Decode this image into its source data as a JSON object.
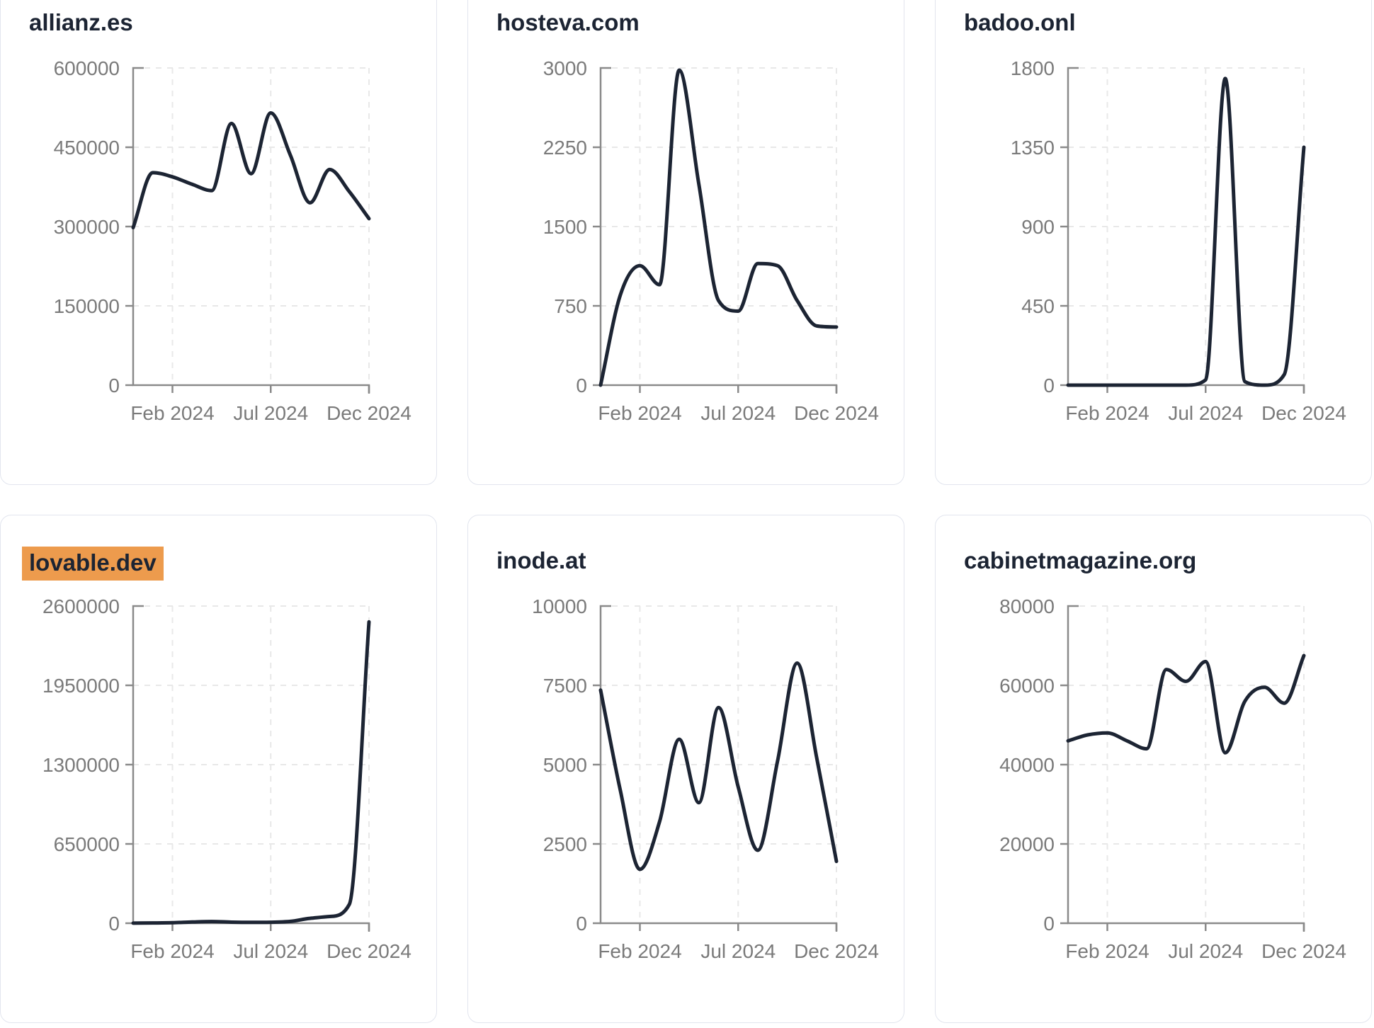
{
  "colors": {
    "line": "#1C2433",
    "title": "#1C2433",
    "highlight": "#ED9B4D",
    "tick_label": "#7A7A7A",
    "axis": "#8A8A8A",
    "grid": "#E8E8E8",
    "card_border": "#E2E5EE",
    "background": "#FFFFFF"
  },
  "x_axis": {
    "months": [
      "Dec 2023",
      "Jan 2024",
      "Feb 2024",
      "Mar 2024",
      "Apr 2024",
      "May 2024",
      "Jun 2024",
      "Jul 2024",
      "Aug 2024",
      "Sep 2024",
      "Oct 2024",
      "Nov 2024",
      "Dec 2024"
    ],
    "tick_indices": [
      2,
      7,
      12
    ],
    "tick_labels": [
      "Feb 2024",
      "Jul 2024",
      "Dec 2024"
    ]
  },
  "chart_data": [
    {
      "type": "line",
      "title": "allianz.es",
      "highlighted": false,
      "x": [
        "Dec 2023",
        "Jan 2024",
        "Feb 2024",
        "Mar 2024",
        "Apr 2024",
        "May 2024",
        "Jun 2024",
        "Jul 2024",
        "Aug 2024",
        "Sep 2024",
        "Oct 2024",
        "Nov 2024",
        "Dec 2024"
      ],
      "values": [
        298000,
        402000,
        394000,
        380000,
        368000,
        495000,
        400000,
        515000,
        435000,
        345000,
        408000,
        366000,
        315000
      ],
      "yticks": [
        0,
        150000,
        300000,
        450000,
        600000
      ],
      "ylim": [
        0,
        600000
      ],
      "xticks": [
        "Feb 2024",
        "Jul 2024",
        "Dec 2024"
      ],
      "grid": true,
      "legend": "none"
    },
    {
      "type": "line",
      "title": "hosteva.com",
      "highlighted": false,
      "x": [
        "Dec 2023",
        "Jan 2024",
        "Feb 2024",
        "Mar 2024",
        "Apr 2024",
        "May 2024",
        "Jun 2024",
        "Jul 2024",
        "Aug 2024",
        "Sep 2024",
        "Oct 2024",
        "Nov 2024",
        "Dec 2024"
      ],
      "values": [
        0,
        850,
        1130,
        950,
        2980,
        1900,
        800,
        700,
        1150,
        1130,
        800,
        560,
        550
      ],
      "yticks": [
        0,
        750,
        1500,
        2250,
        3000
      ],
      "ylim": [
        0,
        3000
      ],
      "xticks": [
        "Feb 2024",
        "Jul 2024",
        "Dec 2024"
      ],
      "grid": true,
      "legend": "none"
    },
    {
      "type": "line",
      "title": "badoo.onl",
      "highlighted": false,
      "x": [
        "Dec 2023",
        "Jan 2024",
        "Feb 2024",
        "Mar 2024",
        "Apr 2024",
        "May 2024",
        "Jun 2024",
        "Jul 2024",
        "Aug 2024",
        "Sep 2024",
        "Oct 2024",
        "Nov 2024",
        "Dec 2024"
      ],
      "values": [
        0,
        0,
        0,
        0,
        0,
        0,
        0,
        30,
        1740,
        20,
        0,
        60,
        1350
      ],
      "yticks": [
        0,
        450,
        900,
        1350,
        1800
      ],
      "ylim": [
        0,
        1800
      ],
      "xticks": [
        "Feb 2024",
        "Jul 2024",
        "Dec 2024"
      ],
      "grid": true,
      "legend": "none"
    },
    {
      "type": "line",
      "title": "lovable.dev",
      "highlighted": true,
      "x": [
        "Dec 2023",
        "Jan 2024",
        "Feb 2024",
        "Mar 2024",
        "Apr 2024",
        "May 2024",
        "Jun 2024",
        "Jul 2024",
        "Aug 2024",
        "Sep 2024",
        "Oct 2024",
        "Nov 2024",
        "Dec 2024"
      ],
      "values": [
        1000,
        2000,
        4000,
        10000,
        14000,
        9000,
        7000,
        8000,
        15000,
        40000,
        55000,
        155000,
        2470000
      ],
      "yticks": [
        0,
        650000,
        1300000,
        1950000,
        2600000
      ],
      "ylim": [
        0,
        2600000
      ],
      "xticks": [
        "Feb 2024",
        "Jul 2024",
        "Dec 2024"
      ],
      "grid": true,
      "legend": "none"
    },
    {
      "type": "line",
      "title": "inode.at",
      "highlighted": false,
      "x": [
        "Dec 2023",
        "Jan 2024",
        "Feb 2024",
        "Mar 2024",
        "Apr 2024",
        "May 2024",
        "Jun 2024",
        "Jul 2024",
        "Aug 2024",
        "Sep 2024",
        "Oct 2024",
        "Nov 2024",
        "Dec 2024"
      ],
      "values": [
        7350,
        4200,
        1700,
        3200,
        5800,
        3800,
        6800,
        4300,
        2300,
        5100,
        8200,
        5200,
        1950
      ],
      "yticks": [
        0,
        2500,
        5000,
        7500,
        10000
      ],
      "ylim": [
        0,
        10000
      ],
      "xticks": [
        "Feb 2024",
        "Jul 2024",
        "Dec 2024"
      ],
      "grid": true,
      "legend": "none"
    },
    {
      "type": "line",
      "title": "cabinetmagazine.org",
      "highlighted": false,
      "x": [
        "Dec 2023",
        "Jan 2024",
        "Feb 2024",
        "Mar 2024",
        "Apr 2024",
        "May 2024",
        "Jun 2024",
        "Jul 2024",
        "Aug 2024",
        "Sep 2024",
        "Oct 2024",
        "Nov 2024",
        "Dec 2024"
      ],
      "values": [
        46000,
        47500,
        48000,
        46000,
        44000,
        64000,
        61000,
        66000,
        43000,
        56000,
        59500,
        55500,
        67500
      ],
      "yticks": [
        0,
        20000,
        40000,
        60000,
        80000
      ],
      "ylim": [
        0,
        80000
      ],
      "xticks": [
        "Feb 2024",
        "Jul 2024",
        "Dec 2024"
      ],
      "grid": true,
      "legend": "none"
    }
  ]
}
